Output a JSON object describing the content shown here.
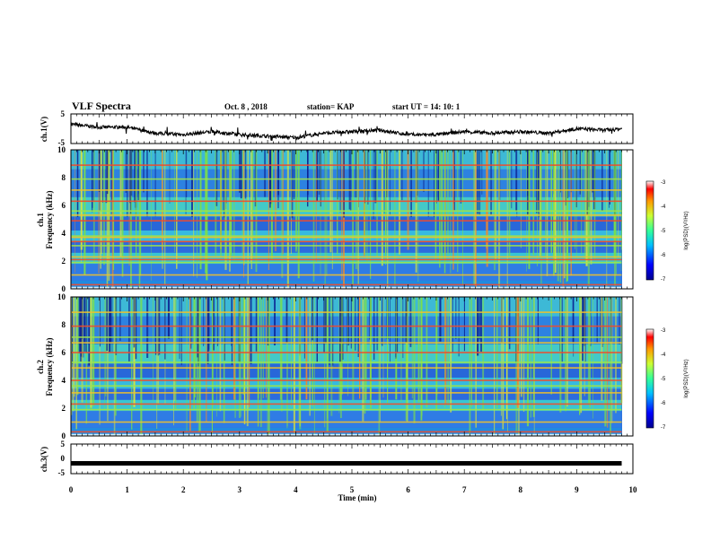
{
  "header": {
    "title": "VLF Spectra",
    "date": "Oct. 8 , 2018",
    "station": "station= KAP",
    "start": "start  UT =   14: 10: 1"
  },
  "chart_data": [
    {
      "type": "line",
      "panel": "ch1-waveform",
      "ylabel": "ch.1(V)",
      "ylim": [
        -5,
        5
      ],
      "ytick_labels": [
        "5",
        "-5"
      ],
      "xlim": [
        0,
        10
      ],
      "x": [
        0,
        0.5,
        1,
        1.5,
        2,
        2.5,
        3,
        3.5,
        4,
        4.5,
        5,
        5.5,
        6,
        6.5,
        7,
        7.5,
        8,
        8.5,
        9,
        9.5,
        9.8
      ],
      "values": [
        1.5,
        0.5,
        0.5,
        -1.5,
        -2.0,
        -1.0,
        -2.0,
        -2.5,
        -3.0,
        -1.5,
        -1.0,
        -0.5,
        -2.0,
        -2.0,
        -1.0,
        -1.5,
        -1.0,
        -1.5,
        0.0,
        -0.5,
        0.0
      ]
    },
    {
      "type": "heatmap",
      "panel": "ch1-spectrogram",
      "ylabel": "ch.1\nFrequency  (kHz)",
      "ylim": [
        0,
        10
      ],
      "ytick_labels": [
        "0",
        "2",
        "4",
        "6",
        "8",
        "10"
      ],
      "xlim": [
        0,
        10
      ],
      "colorbar": {
        "label": "log(PSD)(V²/Hz)",
        "range": [
          -7,
          -3
        ],
        "tick_labels": [
          "-3",
          "-4",
          "-5",
          "-6",
          "-7"
        ]
      },
      "horizontal_lines_khz": [
        0.3,
        1.0,
        1.9,
        2.1,
        2.3,
        3.1,
        3.4,
        3.7,
        3.8,
        4.9,
        5.3,
        5.6,
        6.3,
        7.1,
        7.9,
        8.9
      ]
    },
    {
      "type": "heatmap",
      "panel": "ch2-spectrogram",
      "ylabel": "ch.2\nFrequency  (kHz)",
      "ylim": [
        0,
        10
      ],
      "ytick_labels": [
        "0",
        "2",
        "4",
        "6",
        "8",
        "10"
      ],
      "xlim": [
        0,
        10
      ],
      "colorbar": {
        "label": "log(PSD)(V²/Hz)",
        "range": [
          -7,
          -3
        ],
        "tick_labels": [
          "-3",
          "-4",
          "-5",
          "-6",
          "-7"
        ]
      },
      "horizontal_lines_khz": [
        0.3,
        1.0,
        1.9,
        2.3,
        3.1,
        3.6,
        4.0,
        4.9,
        5.3,
        6.0,
        6.7,
        7.1,
        7.9,
        8.9
      ]
    },
    {
      "type": "line",
      "panel": "ch3-waveform",
      "ylabel": "ch.3(V)",
      "ylim": [
        -5,
        5
      ],
      "ytick_labels": [
        "5",
        "0",
        "-5"
      ],
      "xlim": [
        0,
        10
      ],
      "x": [
        0,
        9.8
      ],
      "values": [
        -1.5,
        -1.5
      ]
    }
  ],
  "xaxis": {
    "label": "Time  (min)",
    "tick_labels": [
      "0",
      "1",
      "2",
      "3",
      "4",
      "5",
      "6",
      "7",
      "8",
      "9",
      "10"
    ]
  }
}
